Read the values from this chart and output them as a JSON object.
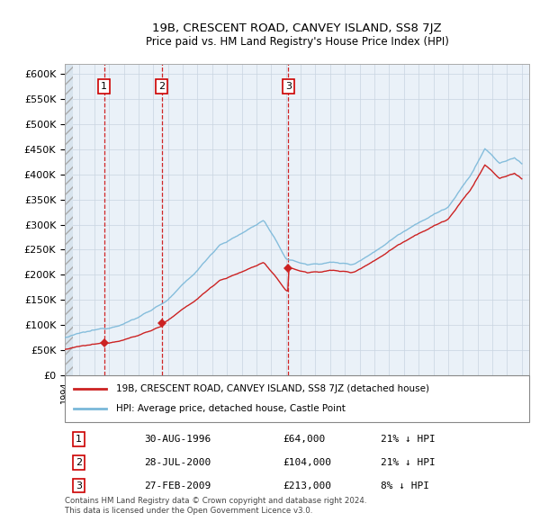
{
  "title": "19B, CRESCENT ROAD, CANVEY ISLAND, SS8 7JZ",
  "subtitle": "Price paid vs. HM Land Registry's House Price Index (HPI)",
  "ylabel_ticks": [
    "£0",
    "£50K",
    "£100K",
    "£150K",
    "£200K",
    "£250K",
    "£300K",
    "£350K",
    "£400K",
    "£450K",
    "£500K",
    "£550K",
    "£600K"
  ],
  "ytick_values": [
    0,
    50000,
    100000,
    150000,
    200000,
    250000,
    300000,
    350000,
    400000,
    450000,
    500000,
    550000,
    600000
  ],
  "ylim": [
    0,
    620000
  ],
  "xlim_start": 1994.0,
  "xlim_end": 2025.5,
  "sales": [
    {
      "year": 1996.664,
      "price": 64000,
      "label": "1"
    },
    {
      "year": 2000.569,
      "price": 104000,
      "label": "2"
    },
    {
      "year": 2009.162,
      "price": 213000,
      "label": "3"
    }
  ],
  "vlines": [
    1996.664,
    2000.569,
    2009.162
  ],
  "hpi_color": "#7ab8d9",
  "price_color": "#cc2222",
  "background_plot": "#eaf1f8",
  "grid_color": "#c8d4e0",
  "legend_entries": [
    "19B, CRESCENT ROAD, CANVEY ISLAND, SS8 7JZ (detached house)",
    "HPI: Average price, detached house, Castle Point"
  ],
  "table_rows": [
    {
      "num": "1",
      "date": "30-AUG-1996",
      "price": "£64,000",
      "hpi": "21% ↓ HPI"
    },
    {
      "num": "2",
      "date": "28-JUL-2000",
      "price": "£104,000",
      "hpi": "21% ↓ HPI"
    },
    {
      "num": "3",
      "date": "27-FEB-2009",
      "price": "£213,000",
      "hpi": "8% ↓ HPI"
    }
  ],
  "footer": "Contains HM Land Registry data © Crown copyright and database right 2024.\nThis data is licensed under the Open Government Licence v3.0.",
  "label_box_color": "#cc0000"
}
